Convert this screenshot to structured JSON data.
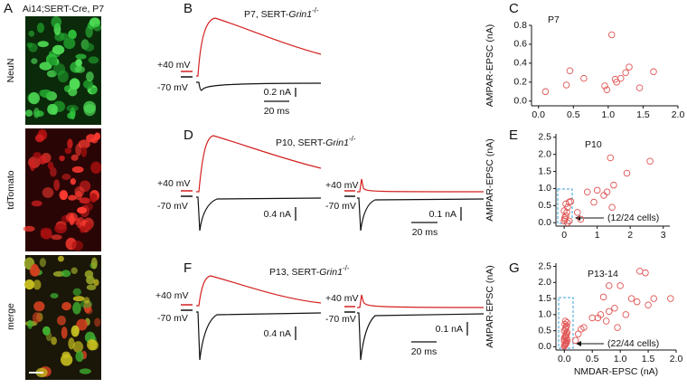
{
  "panel_labels": [
    "A",
    "B",
    "C",
    "D",
    "E",
    "F",
    "G"
  ],
  "images": {
    "title": "Ai14;SERT-Cre, P7",
    "labels": [
      "NeuN",
      "tdTomato",
      "merge"
    ]
  },
  "traces": {
    "holding": [
      "+40 mV",
      "-70 mV"
    ],
    "B": {
      "title": {
        "prefix": "P7, SERT-",
        "gene": "Grin1",
        "sup": "-/-"
      },
      "scales": [
        "0.2 nA",
        "20 ms"
      ]
    },
    "D": {
      "title": {
        "prefix": "P10, SERT-",
        "gene": "Grin1",
        "sup": "-/-"
      },
      "scales": [
        "0.4 nA",
        "0.1 nA",
        "20 ms"
      ]
    },
    "F": {
      "title": {
        "prefix": "P13, SERT-",
        "gene": "Grin1",
        "sup": "-/-"
      },
      "scales": [
        "0.4 nA",
        "0.1 nA",
        "20 ms"
      ]
    }
  },
  "chart_data": [
    {
      "type": "scatter",
      "title": "P7",
      "ylabel": "AMPAR-EPSC (nA)",
      "color": "#e05555",
      "x": [
        0.1,
        0.4,
        0.45,
        0.65,
        0.95,
        0.98,
        1.05,
        1.1,
        1.12,
        1.18,
        1.25,
        1.3,
        1.45,
        1.65
      ],
      "values": [
        0.1,
        0.17,
        0.32,
        0.24,
        0.16,
        0.12,
        0.7,
        0.23,
        0.2,
        0.24,
        0.3,
        0.36,
        0.14,
        0.31
      ],
      "xlim": [
        -0.1,
        2.0
      ],
      "ylim": [
        -0.05,
        0.8
      ],
      "xticks": [
        {
          "value": 0,
          "label": "0.0"
        },
        0.5,
        {
          "value": 1,
          "label": "1.0"
        },
        1.5,
        {
          "value": 2,
          "label": "2.0"
        }
      ],
      "yticks": [
        {
          "value": 0,
          "label": "0.0"
        },
        0.2,
        0.4,
        0.6,
        0.8
      ]
    },
    {
      "type": "scatter",
      "title": "P10",
      "ylabel": "AMPAR-EPSC (nA)",
      "annotation": "(12/24 cells)",
      "color": "#e05555",
      "x": [
        0,
        0.02,
        0.05,
        0.08,
        0,
        0.1,
        0.05,
        0.15,
        0.2,
        0.02,
        0.1,
        0.15,
        0.4,
        0.5,
        0.7,
        0.9,
        1.0,
        1.2,
        1.3,
        1.4,
        1.45,
        1.5,
        1.9,
        2.6
      ],
      "values": [
        0.05,
        0.1,
        0.2,
        0.3,
        0.35,
        0.45,
        0.55,
        0.6,
        0.62,
        0.15,
        0.0,
        0.05,
        0.3,
        0.1,
        0.9,
        0.6,
        0.95,
        0.8,
        0.9,
        1.9,
        0.45,
        1.1,
        1.45,
        1.8
      ],
      "xlim": [
        -0.25,
        3.2
      ],
      "ylim": [
        -0.1,
        2.6
      ],
      "xticks": [
        0,
        1,
        2,
        3
      ],
      "yticks": [
        {
          "value": 0,
          "label": "0.0"
        },
        0.5,
        {
          "value": 1,
          "label": "1.0"
        },
        1.5,
        {
          "value": 2,
          "label": "2.0"
        },
        2.5
      ]
    },
    {
      "type": "scatter",
      "title": "P13-14",
      "ylabel": "AMPAR-EPSC (nA)",
      "xlabel": "NMDAR-EPSC (nA)",
      "annotation": "(22/44 cells)",
      "color": "#e05555",
      "x": [
        0,
        0.01,
        0.02,
        0.03,
        0.04,
        0.05,
        0,
        0.01,
        0.02,
        0.03,
        0.04,
        0.05,
        0,
        0.02,
        0.03,
        0.04,
        0.01,
        0.05,
        0.02,
        0.03,
        0,
        0.04,
        0.2,
        0.25,
        0.3,
        0.35,
        0.5,
        0.6,
        0.65,
        0.7,
        0.8,
        0.8,
        0.9,
        0.95,
        1.0,
        1.2,
        1.3,
        1.35,
        1.45,
        1.6,
        1.1,
        0.75,
        1.9,
        1.5
      ],
      "values": [
        0.02,
        0.05,
        0.08,
        0.12,
        0.15,
        0.2,
        0.25,
        0.3,
        0.33,
        0.36,
        0.4,
        0.45,
        0.5,
        0.55,
        0.6,
        0.65,
        0.7,
        0.75,
        0.8,
        0.1,
        0.18,
        0.28,
        0.2,
        0.4,
        0.55,
        0.6,
        0.9,
        0.9,
        1.0,
        1.55,
        1.1,
        1.9,
        1.2,
        0.6,
        1.9,
        1.5,
        1.4,
        2.35,
        2.3,
        1.5,
        1.0,
        0.8,
        1.5,
        1.3
      ],
      "xlim": [
        -0.15,
        2.0
      ],
      "ylim": [
        -0.1,
        2.6
      ],
      "xticks": [
        {
          "value": 0,
          "label": "0.0"
        },
        0.5,
        {
          "value": 1,
          "label": "1.0"
        },
        1.5,
        {
          "value": 2,
          "label": "2.0"
        }
      ],
      "yticks": [
        {
          "value": 0,
          "label": "0.0"
        },
        0.5,
        {
          "value": 1,
          "label": "1.0"
        },
        1.5,
        {
          "value": 2,
          "label": "2.0"
        },
        2.5
      ]
    }
  ]
}
